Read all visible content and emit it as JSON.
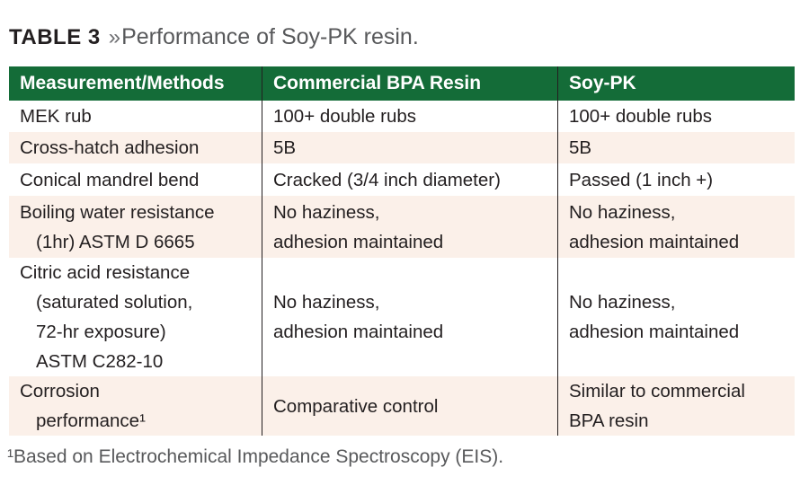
{
  "title": {
    "label": "TABLE 3",
    "chevron": "»",
    "text": "Performance of Soy-PK resin."
  },
  "table": {
    "columns": [
      "Measurement/Methods",
      "Commercial BPA Resin",
      "Soy-PK"
    ],
    "rows": [
      {
        "method": [
          "MEK rub"
        ],
        "bpa": [
          "100+ double rubs"
        ],
        "soy": [
          "100+ double rubs"
        ]
      },
      {
        "method": [
          "Cross-hatch adhesion"
        ],
        "bpa": [
          "5B"
        ],
        "soy": [
          "5B"
        ]
      },
      {
        "method": [
          "Conical mandrel bend"
        ],
        "bpa": [
          "Cracked (3/4 inch diameter)"
        ],
        "soy": [
          "Passed (1 inch +)"
        ]
      },
      {
        "method": [
          "Boiling water resistance",
          "(1hr) ASTM D 6665"
        ],
        "bpa": [
          "No haziness,",
          "adhesion maintained"
        ],
        "soy": [
          "No haziness,",
          "adhesion maintained"
        ]
      },
      {
        "method": [
          "Citric acid resistance",
          "(saturated solution,",
          "72-hr exposure)",
          "ASTM C282-10"
        ],
        "bpa": [
          "No haziness,",
          "adhesion maintained"
        ],
        "soy": [
          "No haziness,",
          "adhesion maintained"
        ]
      },
      {
        "method": [
          "Corrosion",
          "performance¹"
        ],
        "bpa": [
          "Comparative control"
        ],
        "soy": [
          "Similar to commercial",
          "BPA resin"
        ]
      }
    ]
  },
  "footnote": "¹Based on Electrochemical Impedance Spectroscopy (EIS).",
  "colors": {
    "header_green": "#146c38",
    "row_alt_cream": "#fbf0e9",
    "body_text": "#231f20",
    "muted_gray": "#58595b",
    "divider": "#231f20"
  }
}
